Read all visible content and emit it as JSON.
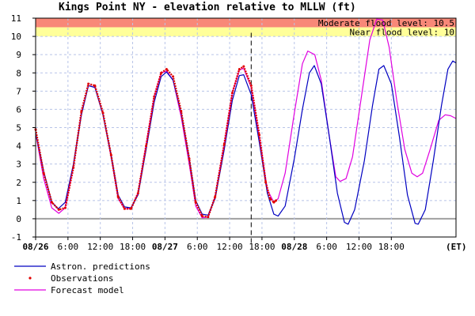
{
  "chart_data": {
    "type": "line",
    "title": "Kings Point NY  -  elevation relative to MLLW (ft)",
    "x_unit_label": "(ET)",
    "xlim": [
      "08/26 00:00",
      "08/29 00:00"
    ],
    "ylim": [
      -1,
      11
    ],
    "y_ticks": [
      -1,
      0,
      1,
      2,
      3,
      4,
      5,
      6,
      7,
      8,
      9,
      10,
      11
    ],
    "x_ticks": [
      {
        "label": "08/26",
        "hour": 0,
        "bold": true
      },
      {
        "label": "6:00",
        "hour": 6,
        "bold": false
      },
      {
        "label": "12:00",
        "hour": 12,
        "bold": false
      },
      {
        "label": "18:00",
        "hour": 18,
        "bold": false
      },
      {
        "label": "08/27",
        "hour": 24,
        "bold": true
      },
      {
        "label": "6:00",
        "hour": 30,
        "bold": false
      },
      {
        "label": "12:00",
        "hour": 36,
        "bold": false
      },
      {
        "label": "18:00",
        "hour": 42,
        "bold": false
      },
      {
        "label": "08/28",
        "hour": 48,
        "bold": true
      },
      {
        "label": "6:00",
        "hour": 54,
        "bold": false
      },
      {
        "label": "12:00",
        "hour": 60,
        "bold": false
      },
      {
        "label": "18:00",
        "hour": 66,
        "bold": false
      }
    ],
    "now_hour": 40,
    "flood_levels": [
      {
        "label": "Moderate flood level: 10.5",
        "from": 10.5,
        "to": 11,
        "color": "#f88878"
      },
      {
        "label": "Near flood level: 10",
        "from": 10,
        "to": 10.5,
        "color": "#ffff99"
      }
    ],
    "series": [
      {
        "name": "Astron. predictions",
        "color": "#0000c0",
        "style": "line",
        "points": [
          [
            0,
            4.7
          ],
          [
            1.5,
            2.6
          ],
          [
            3,
            0.9
          ],
          [
            4.2,
            0.55
          ],
          [
            5.5,
            0.9
          ],
          [
            7,
            3.0
          ],
          [
            8.5,
            5.7
          ],
          [
            9.8,
            7.3
          ],
          [
            11,
            7.2
          ],
          [
            12.5,
            5.7
          ],
          [
            14,
            3.5
          ],
          [
            15.3,
            1.3
          ],
          [
            16.5,
            0.65
          ],
          [
            17.7,
            0.6
          ],
          [
            19,
            1.3
          ],
          [
            20.5,
            3.8
          ],
          [
            22,
            6.4
          ],
          [
            23.3,
            7.8
          ],
          [
            24.3,
            8.05
          ],
          [
            25.5,
            7.6
          ],
          [
            27,
            5.8
          ],
          [
            28.5,
            3.3
          ],
          [
            29.7,
            1.0
          ],
          [
            30.9,
            0.25
          ],
          [
            32,
            0.2
          ],
          [
            33.3,
            1.1
          ],
          [
            35,
            3.8
          ],
          [
            36.5,
            6.5
          ],
          [
            37.8,
            7.85
          ],
          [
            38.6,
            7.9
          ],
          [
            40,
            6.8
          ],
          [
            41.5,
            4.2
          ],
          [
            43,
            1.4
          ],
          [
            44.2,
            0.25
          ],
          [
            45,
            0.15
          ],
          [
            46.3,
            0.7
          ],
          [
            48,
            3.3
          ],
          [
            49.5,
            6.0
          ],
          [
            50.8,
            8.0
          ],
          [
            51.7,
            8.4
          ],
          [
            53,
            7.4
          ],
          [
            54.5,
            4.5
          ],
          [
            56,
            1.4
          ],
          [
            57.3,
            -0.2
          ],
          [
            58,
            -0.3
          ],
          [
            59.2,
            0.5
          ],
          [
            61,
            3.2
          ],
          [
            62.5,
            6.2
          ],
          [
            63.7,
            8.2
          ],
          [
            64.6,
            8.4
          ],
          [
            66,
            7.4
          ],
          [
            67.5,
            4.5
          ],
          [
            69,
            1.3
          ],
          [
            70.4,
            -0.25
          ],
          [
            71,
            -0.3
          ],
          [
            72.3,
            0.5
          ],
          [
            73.8,
            3.2
          ],
          [
            75.3,
            6.2
          ],
          [
            76.5,
            8.2
          ],
          [
            77.4,
            8.65
          ],
          [
            78,
            8.55
          ]
        ]
      },
      {
        "name": "Observations",
        "color": "#e00000",
        "style": "dots",
        "points": [
          [
            0,
            4.9
          ],
          [
            1.5,
            2.5
          ],
          [
            3,
            0.9
          ],
          [
            4.3,
            0.5
          ],
          [
            5.5,
            0.6
          ],
          [
            7,
            2.8
          ],
          [
            8.5,
            5.9
          ],
          [
            9.8,
            7.4
          ],
          [
            11,
            7.3
          ],
          [
            12.5,
            5.8
          ],
          [
            14,
            3.5
          ],
          [
            15.3,
            1.2
          ],
          [
            16.5,
            0.55
          ],
          [
            17.7,
            0.55
          ],
          [
            19,
            1.4
          ],
          [
            20.5,
            4.0
          ],
          [
            22,
            6.7
          ],
          [
            23.3,
            8.0
          ],
          [
            24.3,
            8.2
          ],
          [
            25.5,
            7.8
          ],
          [
            27,
            5.9
          ],
          [
            28.5,
            3.3
          ],
          [
            29.7,
            0.9
          ],
          [
            30.9,
            0.15
          ],
          [
            32,
            0.1
          ],
          [
            33.3,
            1.2
          ],
          [
            35,
            4.1
          ],
          [
            36.5,
            6.9
          ],
          [
            37.8,
            8.2
          ],
          [
            38.6,
            8.35
          ],
          [
            40,
            7.3
          ],
          [
            41.5,
            4.6
          ],
          [
            42.7,
            2.0
          ],
          [
            43.5,
            1.1
          ],
          [
            44.2,
            0.9
          ],
          [
            44.6,
            1.0
          ]
        ]
      },
      {
        "name": "Forecast model",
        "color": "#e000e0",
        "style": "line",
        "points": [
          [
            0,
            4.7
          ],
          [
            1.5,
            2.2
          ],
          [
            3,
            0.6
          ],
          [
            4.3,
            0.3
          ],
          [
            5.5,
            0.6
          ],
          [
            7,
            2.9
          ],
          [
            8.5,
            5.8
          ],
          [
            9.8,
            7.3
          ],
          [
            11,
            7.2
          ],
          [
            12.5,
            5.7
          ],
          [
            14,
            3.4
          ],
          [
            15.3,
            1.1
          ],
          [
            16.5,
            0.55
          ],
          [
            17.7,
            0.55
          ],
          [
            19,
            1.4
          ],
          [
            20.5,
            4.1
          ],
          [
            22,
            6.7
          ],
          [
            23.3,
            8.0
          ],
          [
            24.3,
            8.1
          ],
          [
            25.5,
            7.6
          ],
          [
            27,
            5.6
          ],
          [
            28.5,
            3.0
          ],
          [
            29.7,
            0.7
          ],
          [
            30.9,
            0.05
          ],
          [
            32,
            0.1
          ],
          [
            33.3,
            1.2
          ],
          [
            35,
            4.1
          ],
          [
            36.5,
            6.9
          ],
          [
            37.8,
            8.15
          ],
          [
            38.6,
            8.25
          ],
          [
            40,
            7.2
          ],
          [
            41.5,
            4.5
          ],
          [
            43,
            1.6
          ],
          [
            44.2,
            0.9
          ],
          [
            45,
            1.1
          ],
          [
            46.3,
            2.5
          ],
          [
            48,
            5.8
          ],
          [
            49.5,
            8.5
          ],
          [
            50.5,
            9.2
          ],
          [
            51.8,
            9.0
          ],
          [
            53,
            7.6
          ],
          [
            54.5,
            4.5
          ],
          [
            55.7,
            2.3
          ],
          [
            56.5,
            2.05
          ],
          [
            57.6,
            2.2
          ],
          [
            58.8,
            3.4
          ],
          [
            60.5,
            6.8
          ],
          [
            62,
            9.8
          ],
          [
            63.3,
            10.95
          ],
          [
            64.4,
            10.9
          ],
          [
            65.6,
            9.4
          ],
          [
            67,
            6.5
          ],
          [
            68.5,
            3.8
          ],
          [
            69.8,
            2.5
          ],
          [
            70.8,
            2.3
          ],
          [
            71.8,
            2.5
          ],
          [
            73.2,
            3.8
          ],
          [
            74.8,
            5.4
          ],
          [
            76,
            5.7
          ],
          [
            77,
            5.65
          ],
          [
            78,
            5.5
          ]
        ]
      }
    ]
  }
}
